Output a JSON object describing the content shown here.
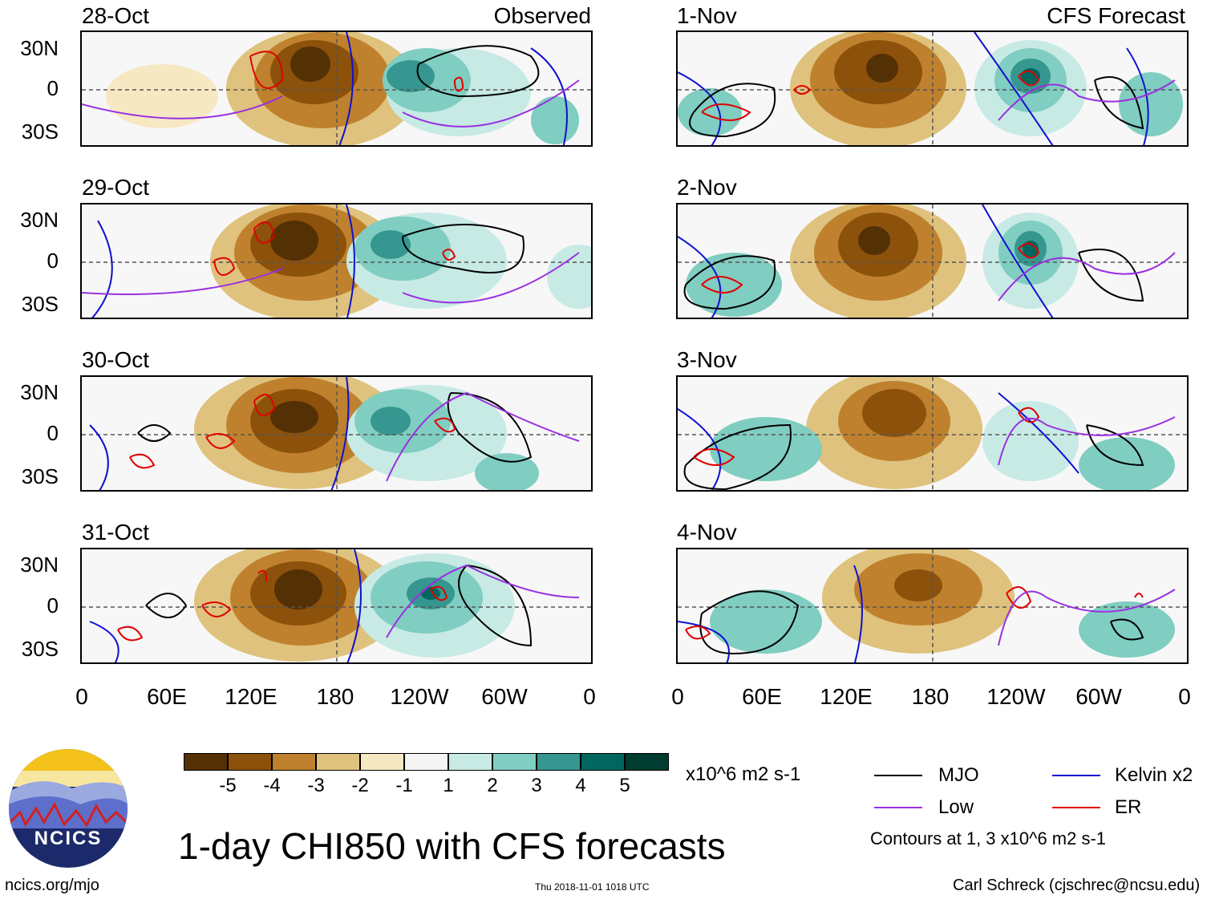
{
  "panels": {
    "observed": [
      {
        "date": "28-Oct",
        "source": "Observed"
      },
      {
        "date": "29-Oct",
        "source": ""
      },
      {
        "date": "30-Oct",
        "source": ""
      },
      {
        "date": "31-Oct",
        "source": ""
      }
    ],
    "forecast": [
      {
        "date": "1-Nov",
        "source": "CFS Forecast"
      },
      {
        "date": "2-Nov",
        "source": ""
      },
      {
        "date": "3-Nov",
        "source": ""
      },
      {
        "date": "4-Nov",
        "source": ""
      }
    ]
  },
  "lat_labels": [
    "30N",
    "0",
    "30S"
  ],
  "lon_labels": [
    "0",
    "60E",
    "120E",
    "180",
    "120W",
    "60W",
    "0"
  ],
  "colorbar": {
    "colors": [
      "#543005",
      "#8c510a",
      "#bf812d",
      "#dfc27d",
      "#f6e8c3",
      "#f5f5f5",
      "#c7eae5",
      "#80cdc1",
      "#35978f",
      "#01665e",
      "#003c30"
    ],
    "labels": [
      "-5",
      "-4",
      "-3",
      "-2",
      "-1",
      "1",
      "2",
      "3",
      "4",
      "5"
    ],
    "units": "x10^6 m2 s-1"
  },
  "legend": {
    "mjo": {
      "label": "MJO",
      "color": "#000000"
    },
    "kelvin": {
      "label": "Kelvin x2",
      "color": "#1010d0"
    },
    "low": {
      "label": "Low",
      "color": "#9a30e0"
    },
    "er": {
      "label": "ER",
      "color": "#e00000"
    },
    "note": "Contours at 1, 3 x10^6 m2 s-1"
  },
  "logo": {
    "text": "NCICS"
  },
  "title": "1-day CHI850 with CFS forecasts",
  "footer": {
    "website": "ncics.org/mjo",
    "timestamp": "Thu 2018-11-01 1018 UTC",
    "author": "Carl Schreck (cjschrec@ncsu.edu)"
  }
}
